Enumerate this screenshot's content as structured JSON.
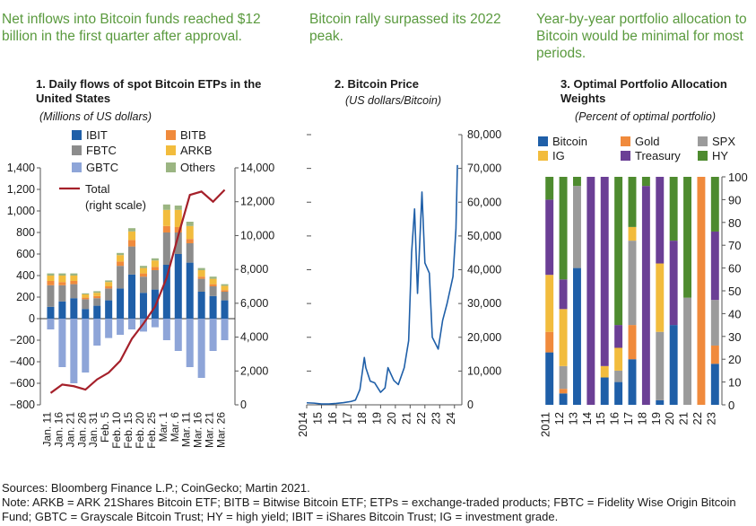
{
  "headlines": {
    "h1": "Net inflows into Bitcoin funds reached $12 billion in the first quarter after approval.",
    "h2": "Bitcoin rally surpassed its 2022 peak.",
    "h3": "Year-by-year portfolio allocation to Bitcoin would be minimal for most periods."
  },
  "charts": {
    "c1": {
      "title": "1. Daily flows of spot Bitcoin ETPs in the United States",
      "subtitle": "(Millions of US dollars)"
    },
    "c2": {
      "title": "2. Bitcoin Price",
      "subtitle": "(US dollars/Bitcoin)"
    },
    "c3": {
      "title": "3. Optimal Portfolio Allocation Weights",
      "subtitle": "(Percent of optimal portfolio)"
    }
  },
  "footer": {
    "sources": "Sources: Bloomberg Finance L.P.; CoinGecko; Martin 2021.",
    "note": "Note: ARKB = ARK 21Shares Bitcoin ETF; BITB = Bitwise Bitcoin ETF; ETPs = exchange-traded products; FBTC = Fidelity Wise Origin Bitcoin Fund; GBTC = Grayscale Bitcoin Trust; HY = high yield; IBIT = iShares Bitcoin Trust; IG = investment grade."
  },
  "chart_data": [
    {
      "type": "bar",
      "stacked": true,
      "legend": {
        "position": "top-left",
        "items": [
          "IBIT",
          "BITB",
          "FBTC",
          "ARKB",
          "GBTC",
          "Others",
          "Total",
          "(right scale)"
        ]
      },
      "colors": {
        "IBIT": "#1f5fa8",
        "BITB": "#f08a3c",
        "FBTC": "#8c8c8c",
        "ARKB": "#f2bc3d",
        "GBTC": "#8ea5d8",
        "Others": "#9bb582",
        "Total": "#a5202a"
      },
      "categories": [
        "Jan. 11",
        "Jan. 16",
        "Jan. 21",
        "Jan. 26",
        "Jan. 31",
        "Feb. 5",
        "Feb. 10",
        "Feb. 15",
        "Feb. 20",
        "Feb. 25",
        "Mar. 1",
        "Mar. 6",
        "Mar. 11",
        "Mar. 16",
        "Mar. 21",
        "Mar. 26"
      ],
      "series": [
        {
          "name": "IBIT",
          "values": [
            110,
            160,
            190,
            90,
            120,
            170,
            280,
            410,
            240,
            270,
            500,
            600,
            520,
            250,
            210,
            170
          ]
        },
        {
          "name": "FBTC",
          "values": [
            200,
            150,
            130,
            90,
            70,
            110,
            210,
            260,
            150,
            180,
            300,
            200,
            180,
            120,
            90,
            80
          ]
        },
        {
          "name": "BITB",
          "values": [
            40,
            30,
            30,
            15,
            20,
            20,
            40,
            60,
            30,
            30,
            60,
            50,
            40,
            20,
            20,
            15
          ]
        },
        {
          "name": "ARKB",
          "values": [
            50,
            60,
            50,
            30,
            30,
            40,
            60,
            80,
            50,
            60,
            150,
            160,
            120,
            60,
            50,
            40
          ]
        },
        {
          "name": "Others",
          "values": [
            20,
            20,
            20,
            10,
            15,
            15,
            20,
            30,
            20,
            20,
            50,
            40,
            40,
            20,
            20,
            15
          ]
        },
        {
          "name": "GBTC",
          "values": [
            -100,
            -450,
            -600,
            -500,
            -250,
            -180,
            -150,
            -100,
            -120,
            -80,
            -200,
            -300,
            -450,
            -550,
            -300,
            -200
          ]
        }
      ],
      "total_right_scale": {
        "name": "Total",
        "x": [
          "Jan. 11",
          "Jan. 16",
          "Jan. 21",
          "Jan. 26",
          "Jan. 31",
          "Feb. 5",
          "Feb. 10",
          "Feb. 15",
          "Feb. 20",
          "Feb. 25",
          "Mar. 1",
          "Mar. 6",
          "Mar. 11",
          "Mar. 16",
          "Mar. 21",
          "Mar. 26"
        ],
        "values": [
          700,
          1200,
          1100,
          900,
          1500,
          1900,
          2600,
          3900,
          4800,
          5800,
          7500,
          10000,
          12400,
          12600,
          12000,
          12700
        ]
      },
      "left_axis": {
        "ylim": [
          -800,
          1400
        ],
        "ticks": [
          "1,400",
          "1,200",
          "1,000",
          "800",
          "600",
          "400",
          "200",
          "0",
          "−200",
          "−400",
          "−600",
          "−800"
        ]
      },
      "right_axis": {
        "ylim": [
          0,
          14000
        ],
        "ticks": [
          "14,000",
          "12,000",
          "10,000",
          "8,000",
          "6,000",
          "4,000",
          "2,000",
          "0"
        ]
      }
    },
    {
      "type": "line",
      "series": [
        {
          "x": [
            2014,
            2014.5,
            2015,
            2015.5,
            2016,
            2016.5,
            2017,
            2017.3,
            2017.6,
            2017.9,
            2018.0,
            2018.3,
            2018.6,
            2019.0,
            2019.3,
            2019.5,
            2019.9,
            2020.2,
            2020.6,
            2020.9,
            2021.1,
            2021.3,
            2021.5,
            2021.8,
            2022.0,
            2022.3,
            2022.5,
            2022.9,
            2023.2,
            2023.5,
            2023.9,
            2024.1,
            2024.2
          ],
          "values": [
            600,
            500,
            250,
            260,
            420,
            650,
            1000,
            1400,
            4500,
            14000,
            11000,
            7000,
            6500,
            3700,
            5000,
            11000,
            7200,
            6000,
            11000,
            19000,
            45000,
            58000,
            33000,
            63000,
            42000,
            39000,
            20000,
            16500,
            25000,
            30000,
            38000,
            52000,
            71000
          ]
        }
      ],
      "x_ticks": [
        "2014",
        "15",
        "16",
        "17",
        "18",
        "19",
        "20",
        "21",
        "22",
        "23",
        "24"
      ],
      "ylim": [
        0,
        80000
      ],
      "right_axis_ticks": [
        "80,000",
        "70,000",
        "60,000",
        "50,000",
        "40,000",
        "30,000",
        "20,000",
        "10,000",
        "0"
      ]
    },
    {
      "type": "bar",
      "stacked": true,
      "legend": {
        "position": "top",
        "items": [
          "Bitcoin",
          "Gold",
          "SPX",
          "IG",
          "Treasury",
          "HY"
        ]
      },
      "colors": {
        "Bitcoin": "#1f5fa8",
        "Gold": "#f08a3c",
        "SPX": "#9b9b9b",
        "IG": "#f2bc3d",
        "Treasury": "#6b3f95",
        "HY": "#4e8b2f"
      },
      "categories": [
        "2011",
        "12",
        "13",
        "14",
        "15",
        "16",
        "17",
        "18",
        "19",
        "20",
        "21",
        "22",
        "23"
      ],
      "series": [
        {
          "name": "Bitcoin",
          "values": [
            23,
            5,
            60,
            0,
            12,
            10,
            20,
            0,
            2,
            35,
            0,
            0,
            18
          ]
        },
        {
          "name": "Gold",
          "values": [
            9,
            2,
            0,
            0,
            0,
            0,
            15,
            0,
            0,
            0,
            0,
            100,
            8
          ]
        },
        {
          "name": "SPX",
          "values": [
            0,
            10,
            36,
            0,
            0,
            5,
            37,
            0,
            30,
            0,
            47,
            0,
            20
          ]
        },
        {
          "name": "IG",
          "values": [
            25,
            25,
            0,
            0,
            5,
            10,
            6,
            0,
            30,
            0,
            0,
            0,
            0
          ]
        },
        {
          "name": "Treasury",
          "values": [
            33,
            13,
            0,
            100,
            83,
            10,
            0,
            96,
            38,
            37,
            0,
            0,
            30
          ]
        },
        {
          "name": "HY",
          "values": [
            10,
            45,
            4,
            0,
            0,
            65,
            22,
            4,
            0,
            28,
            53,
            0,
            24
          ]
        }
      ],
      "ylim": [
        0,
        100
      ],
      "y_ticks": [
        "100",
        "90",
        "80",
        "70",
        "60",
        "50",
        "40",
        "30",
        "20",
        "10",
        "0"
      ]
    }
  ]
}
